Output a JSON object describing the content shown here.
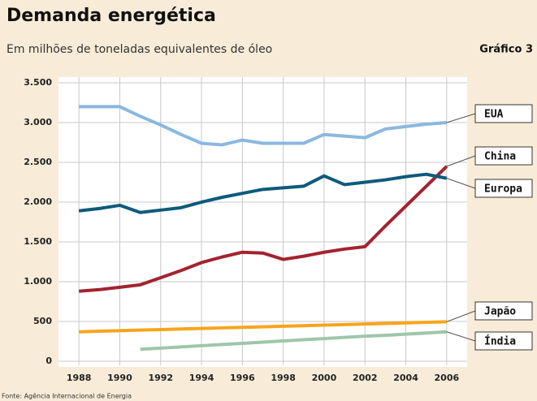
{
  "chart_data": {
    "type": "line",
    "title": "Demanda energética",
    "subtitle": "Em milhões de toneladas equivalentes de óleo",
    "chart_label": "Gráfico 3",
    "source": "Fonte: Agência Internacional de Energia",
    "x": [
      1988,
      1989,
      1990,
      1991,
      1992,
      1993,
      1994,
      1995,
      1996,
      1997,
      1998,
      1999,
      2000,
      2001,
      2002,
      2003,
      2004,
      2005,
      2006
    ],
    "xlim": [
      1987,
      2007
    ],
    "xticks": [
      1988,
      1990,
      1992,
      1994,
      1996,
      1998,
      2000,
      2002,
      2004,
      2006
    ],
    "ylim": [
      0,
      3500
    ],
    "yticks": [
      0,
      {
        "value": 500,
        "label": "500"
      },
      {
        "value": 1000,
        "label": "1.000"
      },
      {
        "value": 1500,
        "label": "1.500"
      },
      {
        "value": 2000,
        "label": "2.000"
      },
      {
        "value": 2500,
        "label": "2.500"
      },
      {
        "value": 3000,
        "label": "3.000"
      },
      {
        "value": 3500,
        "label": "3.500"
      }
    ],
    "grid": true,
    "series": [
      {
        "name": "EUA",
        "color": "#8ab8e0",
        "values": [
          3200,
          3200,
          3200,
          3080,
          2970,
          2850,
          2740,
          2720,
          2780,
          2740,
          2740,
          2740,
          2850,
          2830,
          2810,
          2920,
          2950,
          2980,
          3000
        ]
      },
      {
        "name": "China",
        "color": "#a3232f",
        "values": [
          880,
          900,
          930,
          960,
          1050,
          1140,
          1240,
          1310,
          1370,
          1360,
          1280,
          1320,
          1370,
          1410,
          1440,
          1700,
          1950,
          2200,
          2450
        ]
      },
      {
        "name": "Europa",
        "color": "#0d5a7d",
        "values": [
          1890,
          1920,
          1960,
          1870,
          1900,
          1930,
          2000,
          2060,
          2110,
          2160,
          2180,
          2200,
          2330,
          2220,
          2250,
          2280,
          2320,
          2350,
          2300
        ]
      },
      {
        "name": "Japão",
        "color": "#f7a51c",
        "values": [
          370,
          377,
          384,
          391,
          398,
          405,
          412,
          419,
          426,
          433,
          440,
          447,
          454,
          461,
          468,
          475,
          482,
          489,
          496
        ]
      },
      {
        "name": "Índia",
        "color": "#9fc6a9",
        "values": [
          null,
          null,
          null,
          150,
          165,
          180,
          195,
          210,
          225,
          240,
          255,
          270,
          285,
          300,
          315,
          325,
          340,
          355,
          370
        ]
      }
    ]
  }
}
